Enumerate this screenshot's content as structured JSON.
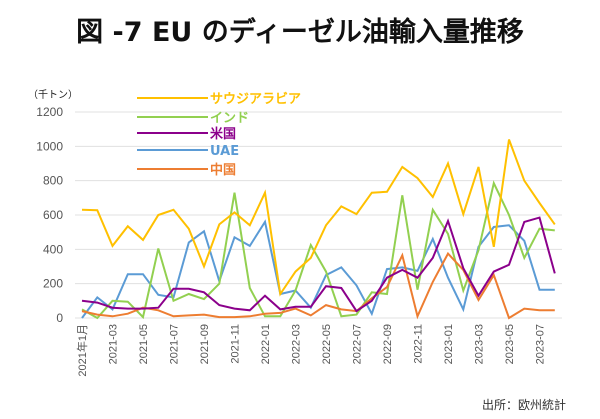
{
  "title": "図 -7 EU のディーゼル油輸入量推移",
  "source": "出所：欧州統計",
  "chart_data": {
    "type": "line",
    "title": "図 -7 EU のディーゼル油輸入量推移",
    "ylabel": "（千トン）",
    "xlabel": "",
    "ylim": [
      0,
      1200
    ],
    "yticks": [
      0,
      200,
      400,
      600,
      800,
      1000,
      1200
    ],
    "grid": true,
    "legend_position": "top-left",
    "x": [
      "2021-01",
      "2021-02",
      "2021-03",
      "2021-04",
      "2021-05",
      "2021-06",
      "2021-07",
      "2021-08",
      "2021-09",
      "2021-10",
      "2021-11",
      "2021-12",
      "2022-01",
      "2022-02",
      "2022-03",
      "2022-04",
      "2022-05",
      "2022-06",
      "2022-07",
      "2022-08",
      "2022-09",
      "2022-10",
      "2022-11",
      "2022-12",
      "2023-01",
      "2023-02",
      "2023-03",
      "2023-04",
      "2023-05",
      "2023-06",
      "2023-07",
      "2023-08"
    ],
    "xtick_labels": [
      {
        "index": 0,
        "label": "2021年1月"
      },
      {
        "index": 2,
        "label": "2021-03"
      },
      {
        "index": 4,
        "label": "2021-05"
      },
      {
        "index": 6,
        "label": "2021-07"
      },
      {
        "index": 8,
        "label": "2021-09"
      },
      {
        "index": 10,
        "label": "2021-11"
      },
      {
        "index": 12,
        "label": "2022-01"
      },
      {
        "index": 14,
        "label": "2022-03"
      },
      {
        "index": 16,
        "label": "2022-05"
      },
      {
        "index": 18,
        "label": "2022-07"
      },
      {
        "index": 20,
        "label": "2022-09"
      },
      {
        "index": 22,
        "label": "2022-11"
      },
      {
        "index": 24,
        "label": "2023-01"
      },
      {
        "index": 26,
        "label": "2023-03"
      },
      {
        "index": 28,
        "label": "2023-05"
      },
      {
        "index": 30,
        "label": "2023-07"
      }
    ],
    "series": [
      {
        "name": "サウジアラビア",
        "color": "#FFC000",
        "values": [
          630,
          628,
          420,
          535,
          455,
          600,
          630,
          520,
          300,
          545,
          615,
          540,
          730,
          140,
          270,
          350,
          540,
          650,
          605,
          730,
          735,
          880,
          815,
          705,
          900,
          605,
          880,
          415,
          1040,
          800,
          670,
          545
        ]
      },
      {
        "name": "インド",
        "color": "#92D050",
        "values": [
          50,
          0,
          100,
          95,
          5,
          405,
          100,
          140,
          110,
          200,
          730,
          175,
          10,
          10,
          160,
          425,
          270,
          10,
          20,
          150,
          140,
          715,
          165,
          630,
          490,
          160,
          395,
          785,
          600,
          350,
          520,
          510
        ]
      },
      {
        "name": "米国",
        "color": "#8B008B",
        "values": [
          100,
          90,
          60,
          55,
          55,
          60,
          170,
          170,
          150,
          75,
          55,
          45,
          130,
          50,
          65,
          65,
          185,
          175,
          40,
          100,
          235,
          280,
          235,
          350,
          565,
          290,
          130,
          270,
          310,
          560,
          585,
          260
        ]
      },
      {
        "name": "UAE",
        "color": "#5B9BD5",
        "values": [
          0,
          120,
          50,
          255,
          255,
          135,
          120,
          440,
          505,
          215,
          470,
          420,
          560,
          140,
          160,
          60,
          250,
          295,
          190,
          25,
          285,
          295,
          275,
          460,
          235,
          50,
          415,
          530,
          540,
          450,
          165,
          165
        ]
      },
      {
        "name": "中国",
        "color": "#ED7D31",
        "values": [
          40,
          20,
          10,
          25,
          60,
          45,
          10,
          15,
          20,
          5,
          5,
          10,
          25,
          30,
          55,
          15,
          75,
          50,
          40,
          115,
          180,
          365,
          10,
          210,
          375,
          280,
          105,
          250,
          0,
          55,
          45,
          45
        ]
      }
    ]
  }
}
